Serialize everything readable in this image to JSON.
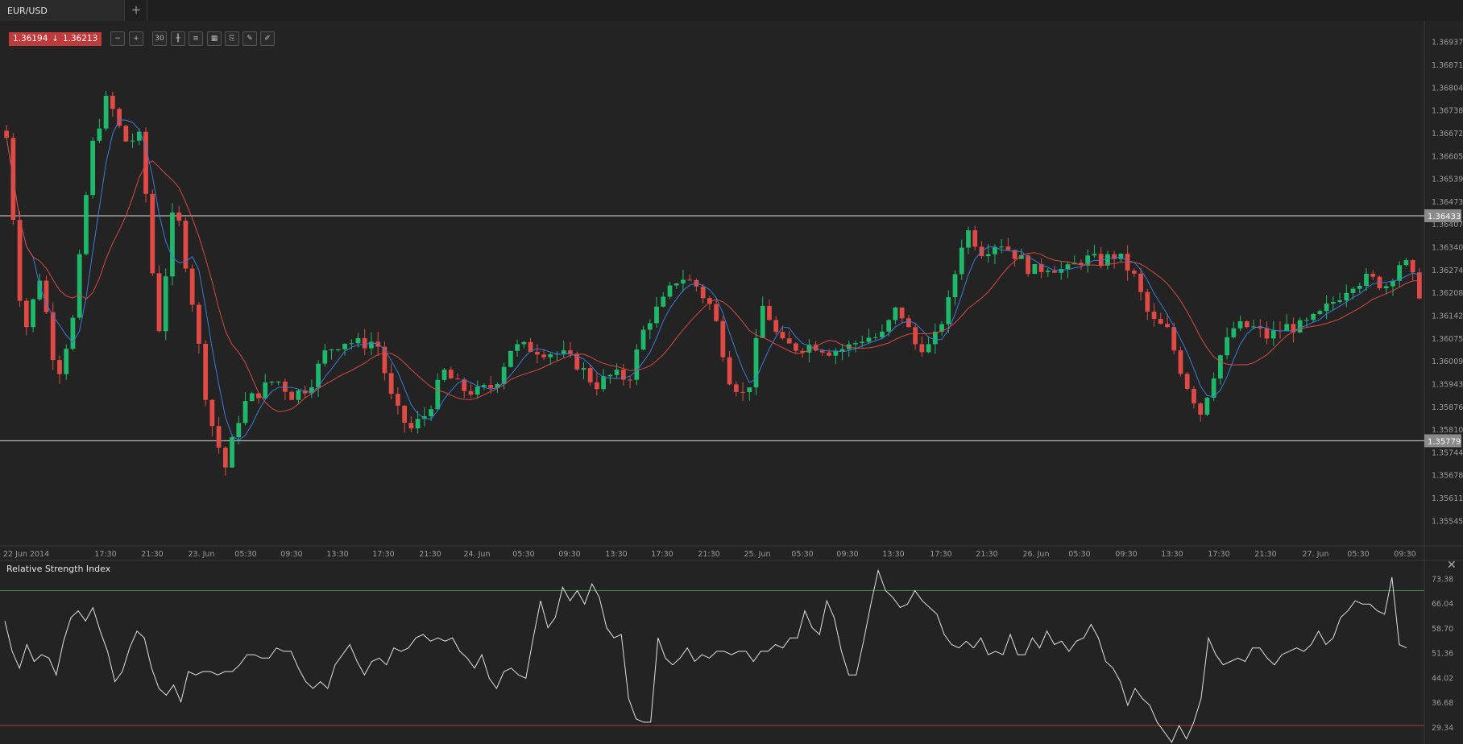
{
  "tab": {
    "label": "EUR/USD",
    "add_label": "+"
  },
  "price_badge": {
    "bid": "1.36194",
    "ask": "1.36213",
    "arrow": "↓"
  },
  "toolbar": [
    {
      "name": "zoom-out-icon",
      "glyph": "−"
    },
    {
      "name": "zoom-in-icon",
      "glyph": "+"
    },
    {
      "name": "timeframe-icon",
      "glyph": "30"
    },
    {
      "name": "candles-icon",
      "glyph": "╫"
    },
    {
      "name": "indicators-icon",
      "glyph": "≡"
    },
    {
      "name": "chart-type-icon",
      "glyph": "▦"
    },
    {
      "name": "template-icon",
      "glyph": "⎘"
    },
    {
      "name": "draw-icon",
      "glyph": "✎"
    },
    {
      "name": "pencil-icon",
      "glyph": "✐"
    }
  ],
  "colors": {
    "bull": "#1fb86b",
    "bear": "#e04a45",
    "ma_fast": "#3a7bd5",
    "ma_slow": "#d14a45",
    "line": "#e0e0e0",
    "rsi_upper": "#3e8a4e",
    "rsi_lower": "#b0393b"
  },
  "rsi_panel": {
    "title": "Relative Strength Index",
    "close": "✕"
  },
  "chart_data": [
    {
      "type": "candlestick",
      "symbol": "EUR/USD",
      "ylim": [
        1.35478,
        1.3699
      ],
      "y_ticks": [
        "1.36937",
        "1.36871",
        "1.36804",
        "1.36738",
        "1.36672",
        "1.36605",
        "1.36539",
        "1.36473",
        "1.36407",
        "1.36340",
        "1.36274",
        "1.36208",
        "1.36142",
        "1.36075",
        "1.36009",
        "1.35943",
        "1.35876",
        "1.35810",
        "1.35744",
        "1.35678",
        "1.35611",
        "1.35545"
      ],
      "x_ticks": [
        "22 Jun 2014",
        "17:30",
        "21:30",
        "23. Jun",
        "05:30",
        "09:30",
        "13:30",
        "17:30",
        "21:30",
        "24. Jun",
        "05:30",
        "09:30",
        "13:30",
        "17:30",
        "21:30",
        "25. Jun",
        "05:30",
        "09:30",
        "13:30",
        "17:30",
        "21:30",
        "26. Jun",
        "05:30",
        "09:30",
        "13:30",
        "17:30",
        "21:30",
        "27. Jun",
        "05:30",
        "09:30"
      ],
      "horizontal_lines": [
        {
          "value": 1.36433,
          "label": "1.36433"
        },
        {
          "value": 1.35779,
          "label": "1.35779"
        }
      ],
      "close_path": [
        1.3666,
        1.3608,
        1.3626,
        1.3596,
        1.3614,
        1.3662,
        1.3678,
        1.3665,
        1.3666,
        1.3608,
        1.3648,
        1.362,
        1.3586,
        1.357,
        1.3588,
        1.3592,
        1.3596,
        1.3591,
        1.3594,
        1.3604,
        1.3607,
        1.3606,
        1.3607,
        1.3588,
        1.3581,
        1.3586,
        1.3598,
        1.3593,
        1.3592,
        1.3594,
        1.3605,
        1.3605,
        1.3604,
        1.3603,
        1.36,
        1.3594,
        1.3597,
        1.3596,
        1.3612,
        1.3618,
        1.3626,
        1.3623,
        1.3616,
        1.3596,
        1.359,
        1.3618,
        1.3606,
        1.3605,
        1.3606,
        1.3604,
        1.3605,
        1.3608,
        1.3608,
        1.3617,
        1.3606,
        1.3605,
        1.3618,
        1.364,
        1.3633,
        1.3636,
        1.3632,
        1.3627,
        1.3629,
        1.3627,
        1.3631,
        1.363,
        1.3632,
        1.3626,
        1.3613,
        1.361,
        1.3596,
        1.3586,
        1.3601,
        1.3611,
        1.3611,
        1.3608,
        1.3611,
        1.3611,
        1.3614,
        1.3619,
        1.3624,
        1.3625,
        1.3623,
        1.3631,
        1.3621
      ]
    },
    {
      "type": "line",
      "name": "Relative Strength Index",
      "ylim": [
        25.0,
        78.0
      ],
      "y_ticks": [
        "73.38",
        "66.04",
        "58.70",
        "51.36",
        "44.02",
        "36.68",
        "29.34"
      ],
      "upper_level": 70,
      "lower_level": 30,
      "values": [
        61,
        52,
        47,
        54,
        49,
        51,
        50,
        45,
        55,
        62,
        64,
        61,
        65,
        58,
        52,
        43,
        46,
        53,
        58,
        56,
        47,
        41,
        39,
        42,
        37,
        46,
        45,
        46,
        46,
        45,
        46,
        46,
        48,
        51,
        51,
        50,
        50,
        53,
        52,
        52,
        47,
        43,
        41,
        43,
        41,
        48,
        51,
        54,
        49,
        45,
        49,
        50,
        48,
        53,
        52,
        53,
        56,
        57,
        55,
        56,
        55,
        56,
        52,
        50,
        47,
        51,
        44,
        41,
        46,
        47,
        45,
        44,
        56,
        67,
        59,
        62,
        71,
        67,
        70,
        66,
        72,
        68,
        59,
        56,
        57,
        38,
        32,
        31,
        31,
        56,
        50,
        48,
        50,
        53,
        49,
        51,
        50,
        52,
        52,
        51,
        52,
        52,
        49,
        52,
        52,
        54,
        53,
        56,
        56,
        64,
        59,
        57,
        67,
        62,
        52,
        45,
        45,
        55,
        66,
        76,
        70,
        68,
        65,
        66,
        70,
        67,
        65,
        63,
        57,
        54,
        53,
        55,
        53,
        56,
        51,
        52,
        51,
        57,
        51,
        51,
        56,
        53,
        58,
        54,
        55,
        52,
        55,
        56,
        60,
        56,
        49,
        47,
        43,
        36,
        41,
        38,
        36,
        31,
        28,
        25,
        30,
        26,
        31,
        38,
        56,
        51,
        48,
        49,
        50,
        49,
        53,
        53,
        50,
        48,
        51,
        52,
        53,
        52,
        54,
        58,
        54,
        56,
        62,
        64,
        67,
        66,
        66,
        64,
        63,
        74,
        54,
        53
      ]
    }
  ]
}
